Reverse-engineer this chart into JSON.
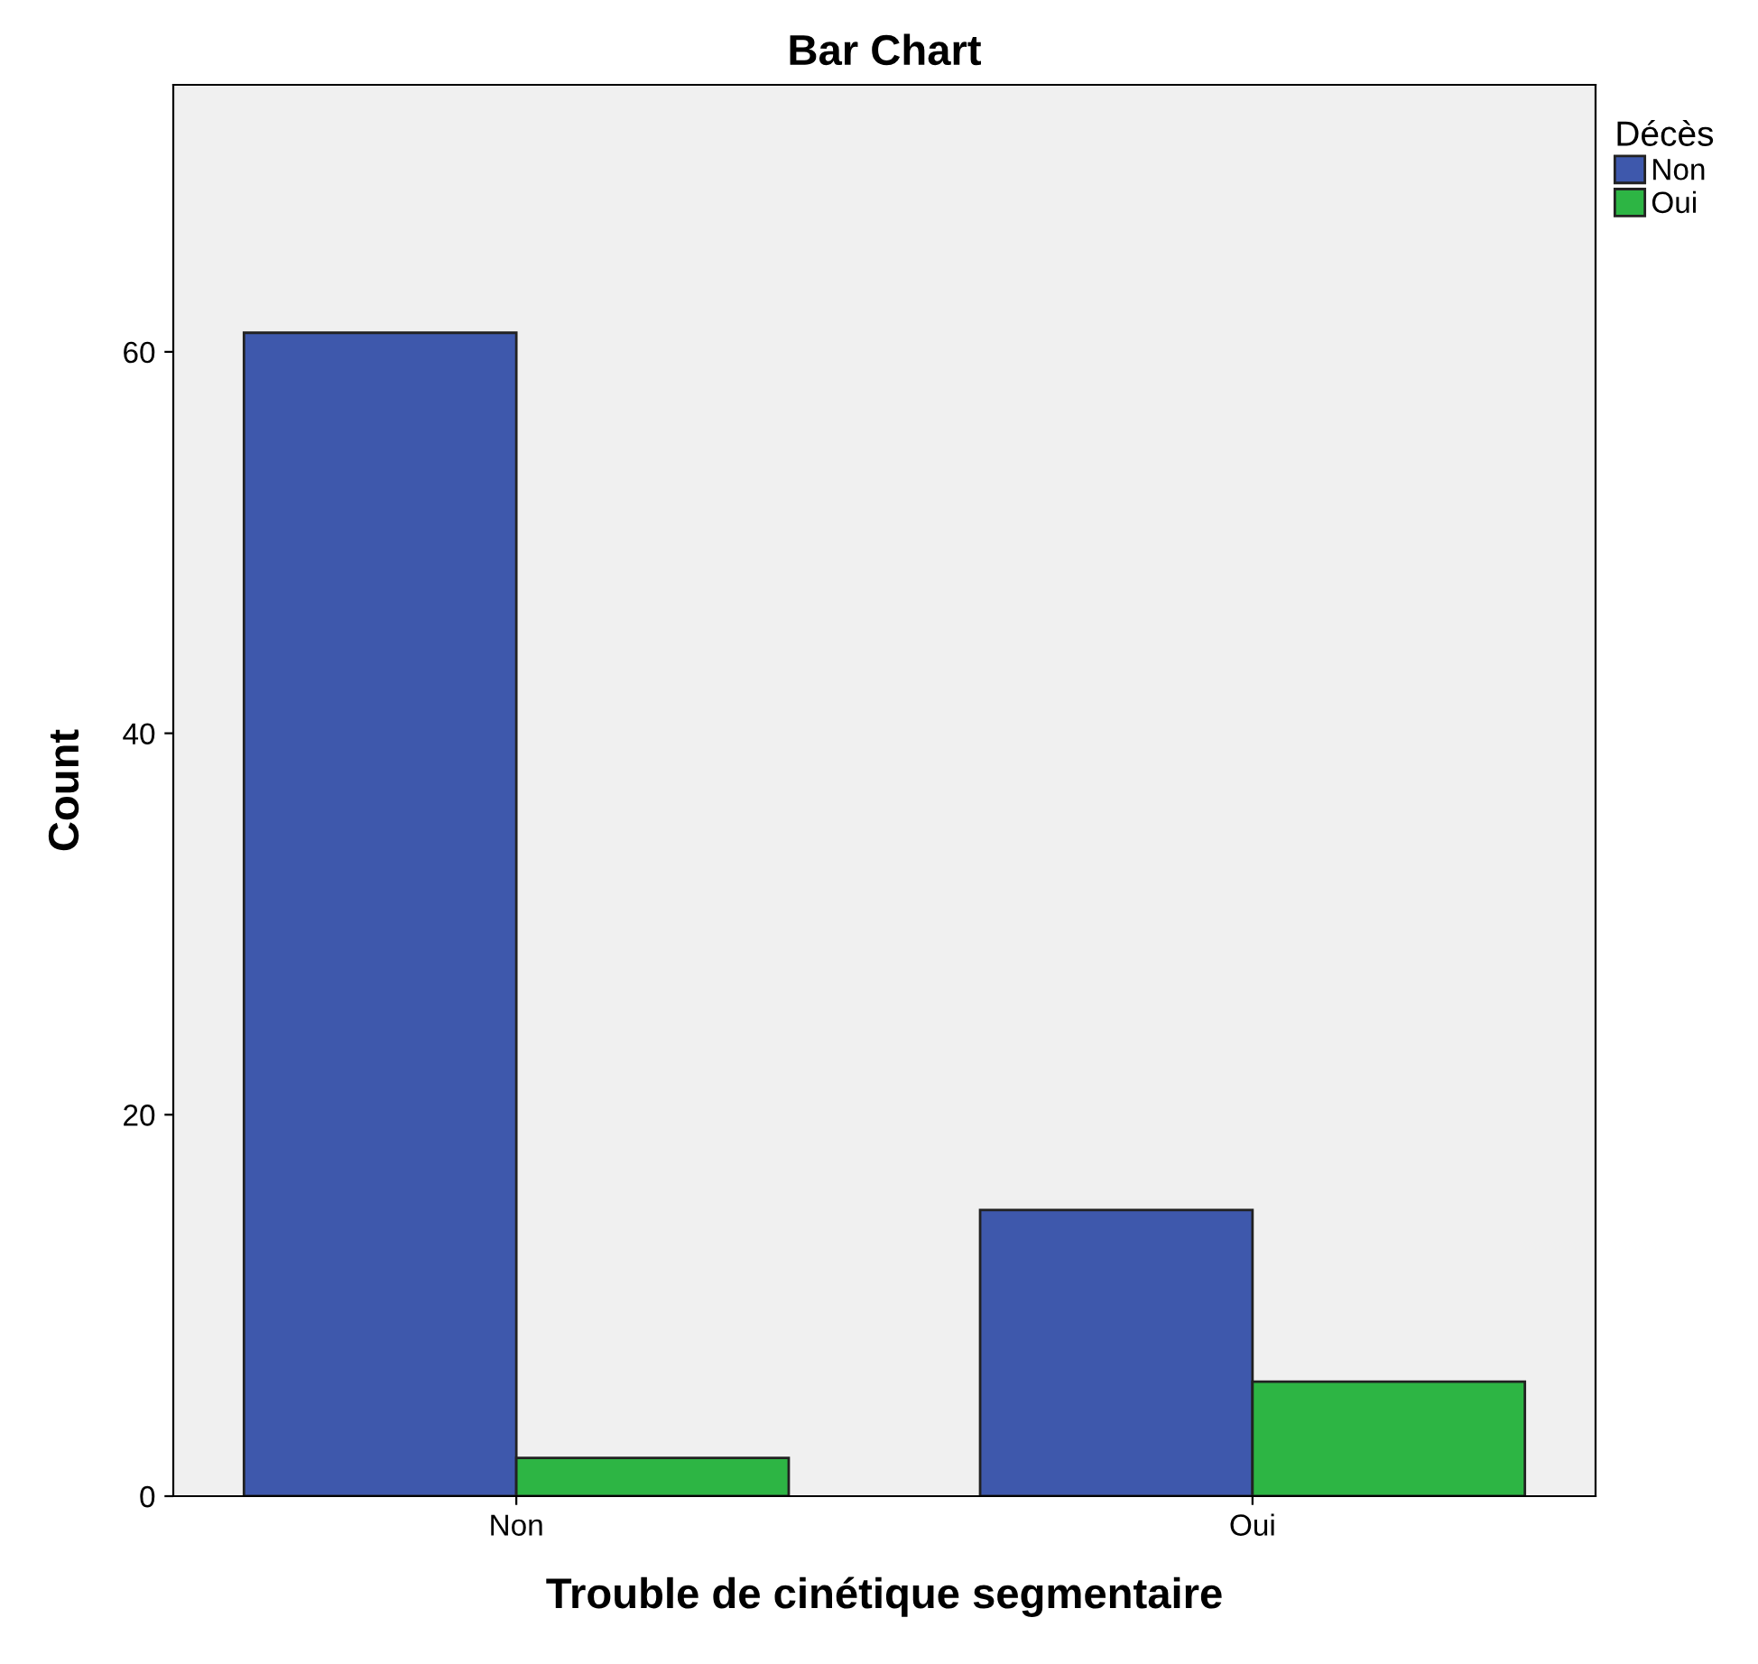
{
  "chart_data": {
    "type": "bar",
    "title": "Bar Chart",
    "xlabel": "Trouble de cinétique segmentaire",
    "ylabel": "Count",
    "categories": [
      "Non",
      "Oui"
    ],
    "series": [
      {
        "name": "Non",
        "color": "#3e58ac",
        "values": [
          61,
          15
        ]
      },
      {
        "name": "Oui",
        "color": "#2db544",
        "values": [
          2,
          6
        ]
      }
    ],
    "legend_title": "Décès",
    "legend": "top right",
    "ylim": [
      0,
      74
    ],
    "yticks": [
      0,
      20,
      40,
      60
    ],
    "grid": false
  }
}
